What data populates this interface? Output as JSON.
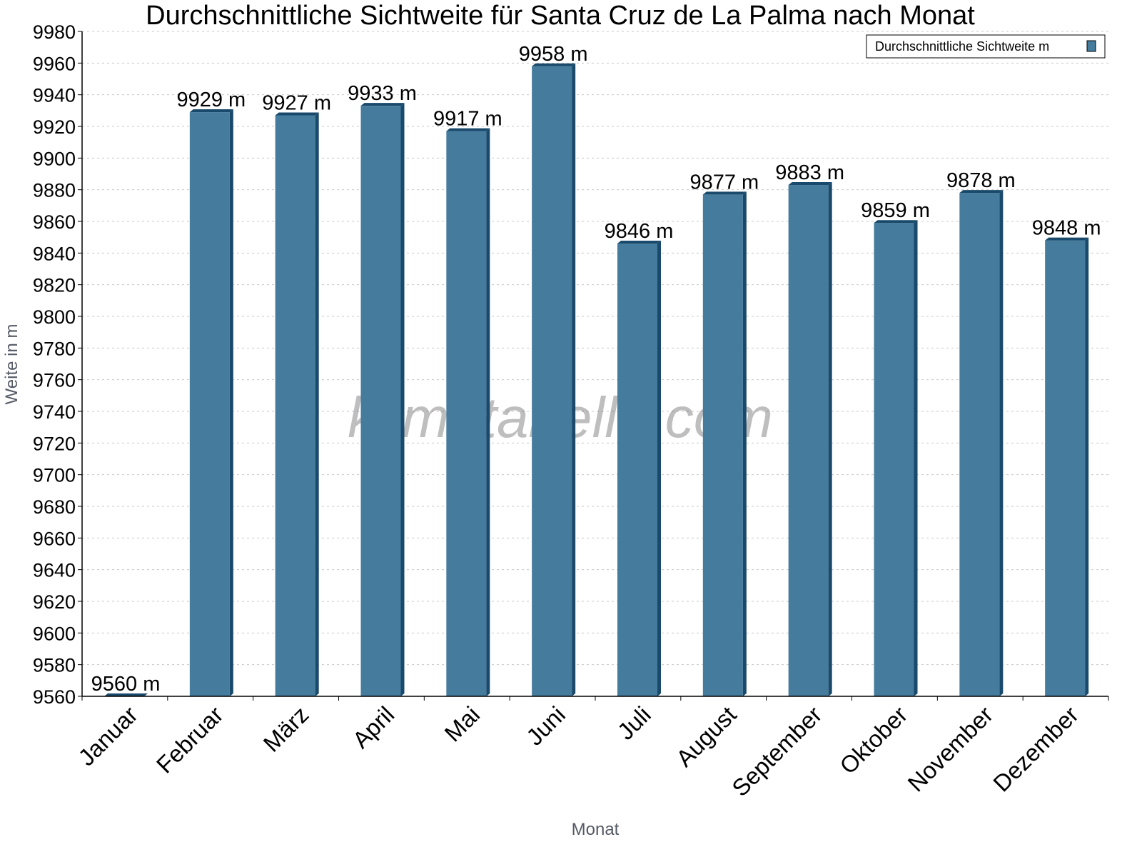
{
  "chart_data": {
    "type": "bar",
    "title": "Durchschnittliche Sichtweite für Santa Cruz de La Palma nach Monat",
    "xlabel": "Monat",
    "ylabel": "Weite in m",
    "ylim": [
      9560,
      9980
    ],
    "ytick_step": 20,
    "grid": true,
    "legend_position": "top-right",
    "watermark": "klimatabelle.com",
    "categories": [
      "Januar",
      "Februar",
      "März",
      "April",
      "Mai",
      "Juni",
      "Juli",
      "August",
      "September",
      "Oktober",
      "November",
      "Dezember"
    ],
    "series": [
      {
        "name": "Durchschnittliche Sichtweite m",
        "values": [
          9560,
          9929,
          9927,
          9933,
          9917,
          9958,
          9846,
          9877,
          9883,
          9859,
          9878,
          9848
        ],
        "color": "#457b9d",
        "side_color": "#1a4a6b"
      }
    ],
    "data_label_suffix": " m"
  }
}
